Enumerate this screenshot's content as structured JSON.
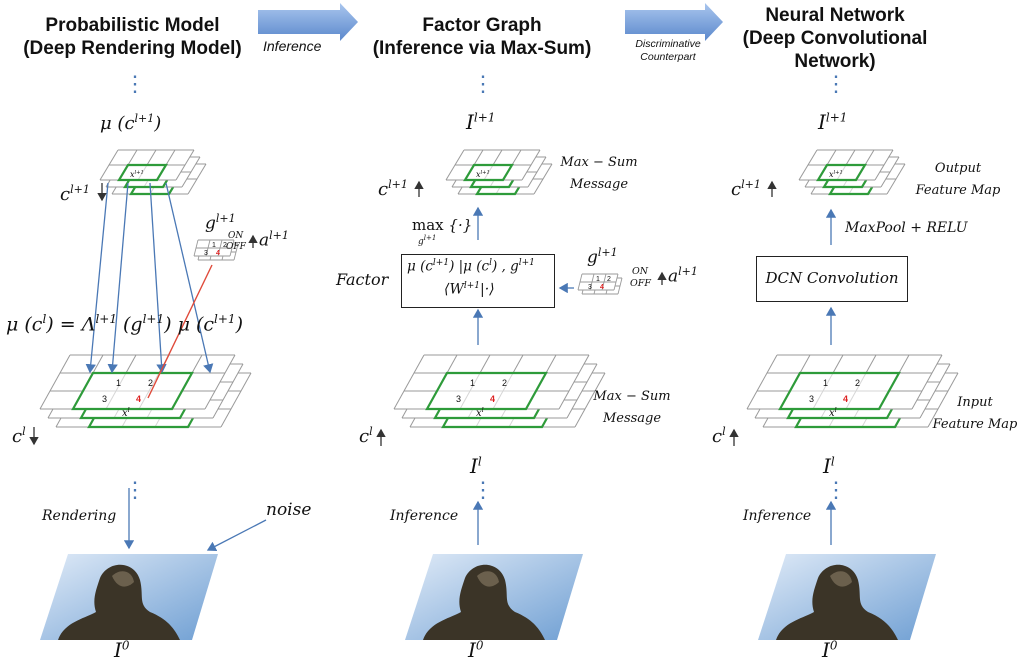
{
  "columns": {
    "probabilistic": {
      "title_1": "Probabilistic Model",
      "title_2": "(Deep Rendering Model)"
    },
    "factor": {
      "title_1": "Factor Graph",
      "title_2": "(Inference via Max-Sum)"
    },
    "neural": {
      "title_1": "Neural Network",
      "title_2": "(Deep Convolutional",
      "title_3": "Network)"
    }
  },
  "arrows": {
    "inference_label": "Inference",
    "discriminative_1": "Discriminative",
    "discriminative_2": "Counterpart"
  },
  "left": {
    "dots": "⋮",
    "mu_top": "μ (c",
    "mu_top_sup": "l+1",
    "mu_top_end": ")",
    "c_top": "c",
    "c_top_sup": "l+1",
    "g": "g",
    "g_sup": "l+1",
    "on": "ON",
    "off": "OFF",
    "a": "a",
    "a_sup": "l+1",
    "equation": "μ (c",
    "eq_sup1": "l",
    "eq_mid": ") = Λ",
    "eq_sup2": "l+1",
    "eq_mid2": " (g",
    "eq_sup3": "l+1",
    "eq_mid3": ") μ (c",
    "eq_sup4": "l+1",
    "eq_end": ")",
    "c_bottom": "c",
    "c_bottom_sup": "l",
    "rendering": "Rendering",
    "noise": "noise",
    "i0": "I",
    "i0_sup": "0",
    "x_top": "x",
    "x_top_sup": "l+1",
    "x_bottom": "x",
    "x_bottom_sup": "l",
    "cells": [
      "1",
      "2",
      "3",
      "4"
    ]
  },
  "middle": {
    "dots": "⋮",
    "i_top": "I",
    "i_top_sup": "l+1",
    "c_top": "c",
    "c_top_sup": "l+1",
    "maxsum_1": "Max − Sum",
    "maxsum_2": "Message",
    "max": "max",
    "max_sub": "g",
    "max_sub_sup": "l+1",
    "max_arg": "{·}",
    "factor": "Factor",
    "box_line1": "μ (c",
    "box_sup1": "l+1",
    "box_mid1": ") |μ (c",
    "box_sup2": "l",
    "box_end1": ") , g",
    "box_sup3": "l+1",
    "box_line2": "⟨W",
    "box_sup4": "l+1",
    "box_end2": "|·⟩",
    "g": "g",
    "g_sup": "l+1",
    "on": "ON",
    "off": "OFF",
    "a": "a",
    "a_sup": "l+1",
    "maxsum2_1": "Max − Sum",
    "maxsum2_2": "Message",
    "c_bottom": "c",
    "c_bottom_sup": "l",
    "i_l": "I",
    "i_l_sup": "l",
    "inference": "Inference",
    "i0": "I",
    "i0_sup": "0",
    "x_top": "x",
    "x_top_sup": "l+1",
    "x_bottom": "x",
    "x_bottom_sup": "l",
    "cells": [
      "1",
      "2",
      "3",
      "4"
    ]
  },
  "right": {
    "dots": "⋮",
    "i_top": "I",
    "i_top_sup": "l+1",
    "c_top": "c",
    "c_top_sup": "l+1",
    "output_1": "Output",
    "output_2": "Feature Map",
    "maxpool": "MaxPool + RELU",
    "dcn": "DCN Convolution",
    "input_1": "Input",
    "input_2": "Feature Map",
    "c_bottom": "c",
    "c_bottom_sup": "l",
    "i_l": "I",
    "i_l_sup": "l",
    "inference": "Inference",
    "i0": "I",
    "i0_sup": "0",
    "x_top": "x",
    "x_top_sup": "l+1",
    "x_bottom": "x",
    "x_bottom_sup": "l",
    "cells": [
      "1",
      "2",
      "3",
      "4"
    ]
  },
  "colors": {
    "green": "#2e9b3a",
    "grid": "#9a9a9a",
    "arrow_blue": "#4a78b5",
    "red_line": "#e04a3a",
    "block_arrow": "#6e9bd6"
  }
}
